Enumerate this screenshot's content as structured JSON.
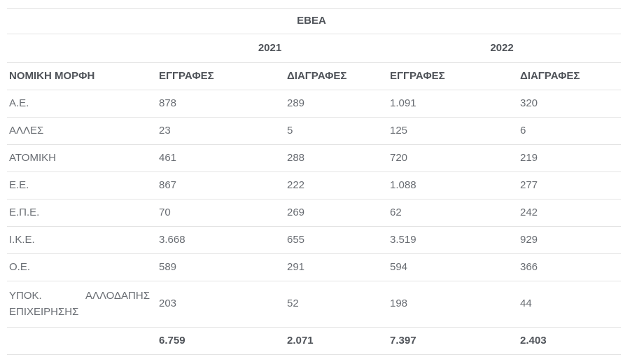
{
  "colors": {
    "text": "#686c72",
    "heading": "#4f5359",
    "border": "#e4e4e4",
    "background": "#ffffff"
  },
  "table": {
    "title": "ΕΒΕΑ",
    "year_groups": [
      "2021",
      "2022"
    ],
    "columns": [
      "ΝΟΜΙΚΗ ΜΟΡΦΗ",
      "ΕΓΓΡΑΦΕΣ",
      "ΔΙΑΓΡΑΦΕΣ",
      "ΕΓΓΡΑΦΕΣ",
      "ΔΙΑΓΡΑΦΕΣ"
    ],
    "rows": [
      {
        "label": "Α.Ε.",
        "values": [
          "878",
          "289",
          "1.091",
          "320"
        ]
      },
      {
        "label": "ΑΛΛΕΣ",
        "values": [
          "23",
          "5",
          "125",
          "6"
        ]
      },
      {
        "label": "ΑΤΟΜΙΚΗ",
        "values": [
          "461",
          "288",
          "720",
          "219"
        ]
      },
      {
        "label": "Ε.Ε.",
        "values": [
          "867",
          "222",
          "1.088",
          "277"
        ]
      },
      {
        "label": "Ε.Π.Ε.",
        "values": [
          "70",
          "269",
          "62",
          "242"
        ]
      },
      {
        "label": "Ι.Κ.Ε.",
        "values": [
          "3.668",
          "655",
          "3.519",
          "929"
        ]
      },
      {
        "label": "Ο.Ε.",
        "values": [
          "589",
          "291",
          "594",
          "366"
        ]
      },
      {
        "label": "ΥΠΟΚ. ΑΛΛΟΔΑΠΗΣ ΕΠΙΧΕΙΡΗΣΗΣ",
        "values": [
          "203",
          "52",
          "198",
          "44"
        ]
      }
    ],
    "totals": {
      "values": [
        "6.759",
        "2.071",
        "7.397",
        "2.403"
      ]
    }
  }
}
